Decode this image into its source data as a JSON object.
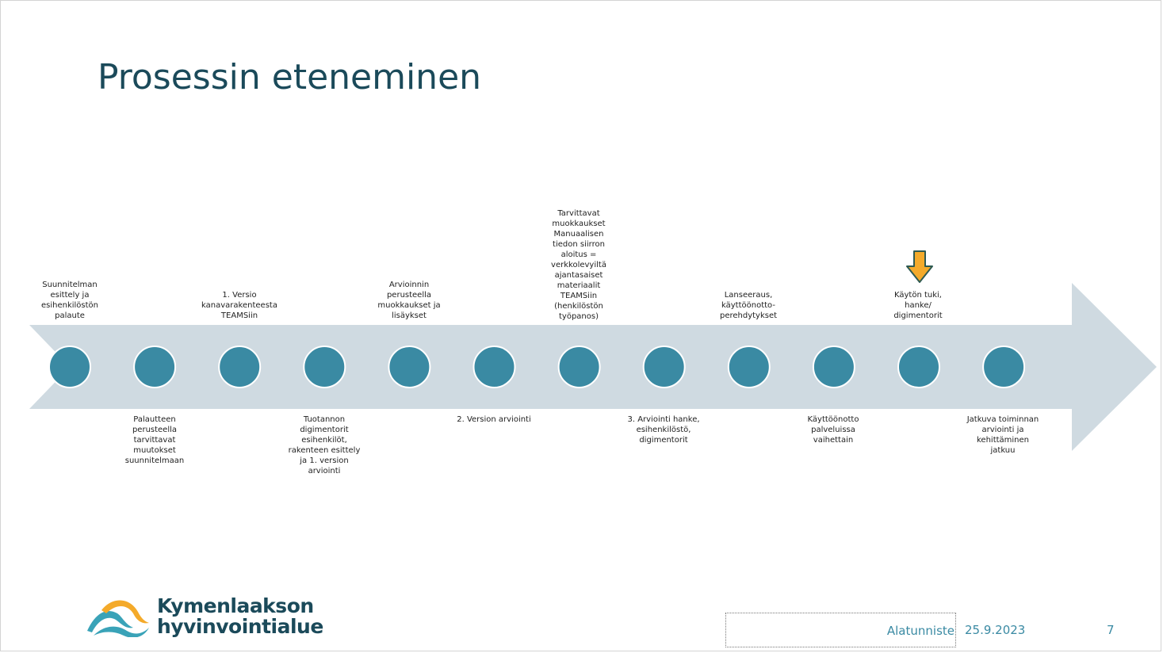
{
  "slide": {
    "title": "Prosessin eteneminen"
  },
  "timeline": {
    "colors": {
      "arrow": "#cfdae1",
      "node": "#3a8aa3",
      "node_border": "#ffffff",
      "marker": "#f4aa2a",
      "marker_border": "#2e5a52"
    },
    "top_labels": [
      {
        "id": "t1",
        "text": "Suunnitelman\nesittely ja\nesihenkilöstön\npalaute"
      },
      {
        "id": "t3",
        "text": "1. Versio\nkanavarakenteesta\nTEAMSiin"
      },
      {
        "id": "t5",
        "text": "Arvioinnin\nperusteella\nmuokkaukset ja\nlisäykset"
      },
      {
        "id": "t7",
        "text": "Tarvittavat\nmuokkaukset\nManuaalisen\ntiedon siirron\naloitus =\nverkkolevyiltä\najantasaiset\nmateriaalit\nTEAMSiin\n(henkilöstön\ntyöpanos)"
      },
      {
        "id": "t9",
        "text": "Lanseeraus,\nkäyttöönotto-\nperehdytykset"
      },
      {
        "id": "t11",
        "text": "Käytön tuki,\nhanke/\ndigimentorit"
      }
    ],
    "bottom_labels": [
      {
        "id": "b2",
        "text": "Palautteen\nperusteella\ntarvittavat\nmuutokset\nsuunnitelmaan"
      },
      {
        "id": "b4",
        "text": "Tuotannon\ndigimentorit\nesihenkilöt,\nrakenteen esittely\nja 1. version\narviointi"
      },
      {
        "id": "b6",
        "text": "2. Version arviointi"
      },
      {
        "id": "b8",
        "text": "3. Arviointi hanke,\nesihenkilöstö,\ndigimentorit"
      },
      {
        "id": "b10",
        "text": "Käyttöönotto\npalveluissa\nvaihettain"
      },
      {
        "id": "b12",
        "text": "Jatkuva toiminnan\narviointi ja\nkehittäminen\njatkuu"
      }
    ],
    "node_count": 12,
    "current_step": 11,
    "marker_icon": "down-arrow-icon"
  },
  "logo": {
    "line1": "Kymenlaakson",
    "line2": "hyvinvointialue",
    "colors": {
      "teal": "#3aa3b8",
      "orange": "#f4aa2a",
      "text": "#1b4a5a"
    }
  },
  "footer": {
    "text": "Alatunniste",
    "date": "25.9.2023",
    "page": "7"
  }
}
